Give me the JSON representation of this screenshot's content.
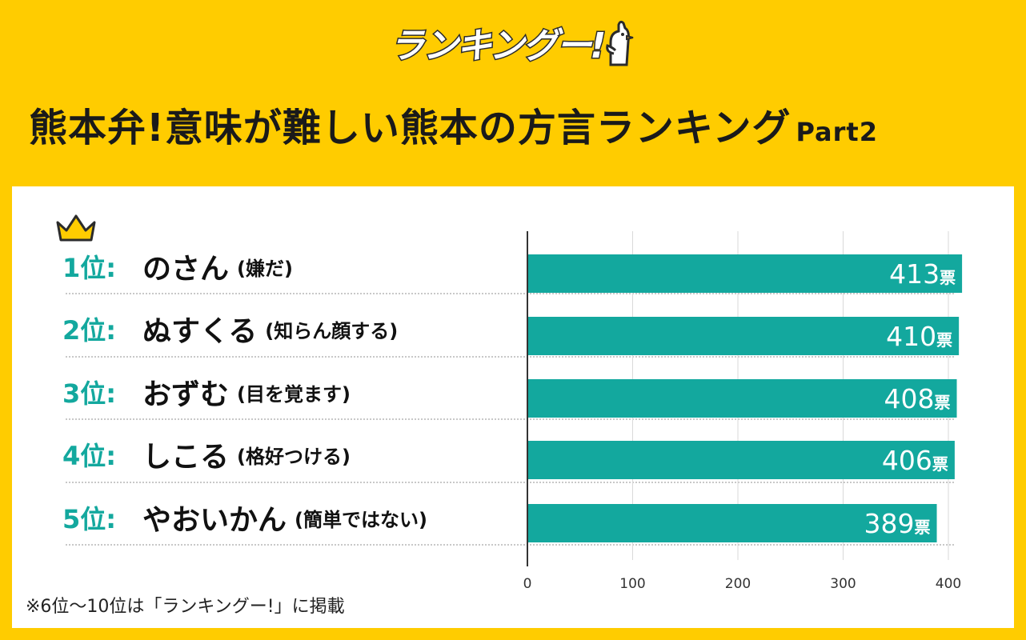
{
  "logo": {
    "text": "ランキングー!"
  },
  "title": {
    "main": "熊本弁!意味が難しい熊本の方言ランキング",
    "suffix": "Part2"
  },
  "footnote": "※6位〜10位は「ランキングー!」に掲載",
  "rows": [
    {
      "rank": "1位:",
      "dialect": "のさん",
      "meaning": "(嫌だ)"
    },
    {
      "rank": "2位:",
      "dialect": "ぬすくる",
      "meaning": "(知らん顔する)"
    },
    {
      "rank": "3位:",
      "dialect": "おずむ",
      "meaning": "(目を覚ます)"
    },
    {
      "rank": "4位:",
      "dialect": "しこる",
      "meaning": "(格好つける)"
    },
    {
      "rank": "5位:",
      "dialect": "やおいかん",
      "meaning": "(簡単ではない)"
    }
  ],
  "colors": {
    "background": "#FFCC00",
    "bar": "#13A89E",
    "rank_text": "#13A89E",
    "crown": "#FFCC00"
  },
  "icons": {
    "crown": "crown-icon",
    "mascot": "chick-mascot-icon"
  },
  "chart_data": {
    "type": "bar",
    "orientation": "horizontal",
    "categories": [
      "のさん",
      "ぬすくる",
      "おずむ",
      "しこる",
      "やおいかん"
    ],
    "values": [
      413,
      410,
      408,
      406,
      389
    ],
    "value_unit": "票",
    "value_labels": [
      "413",
      "410",
      "408",
      "406",
      "389"
    ],
    "xlim": [
      0,
      400
    ],
    "xticks": [
      "0",
      "100",
      "200",
      "300",
      "400"
    ],
    "grid": true,
    "legend": "none"
  }
}
